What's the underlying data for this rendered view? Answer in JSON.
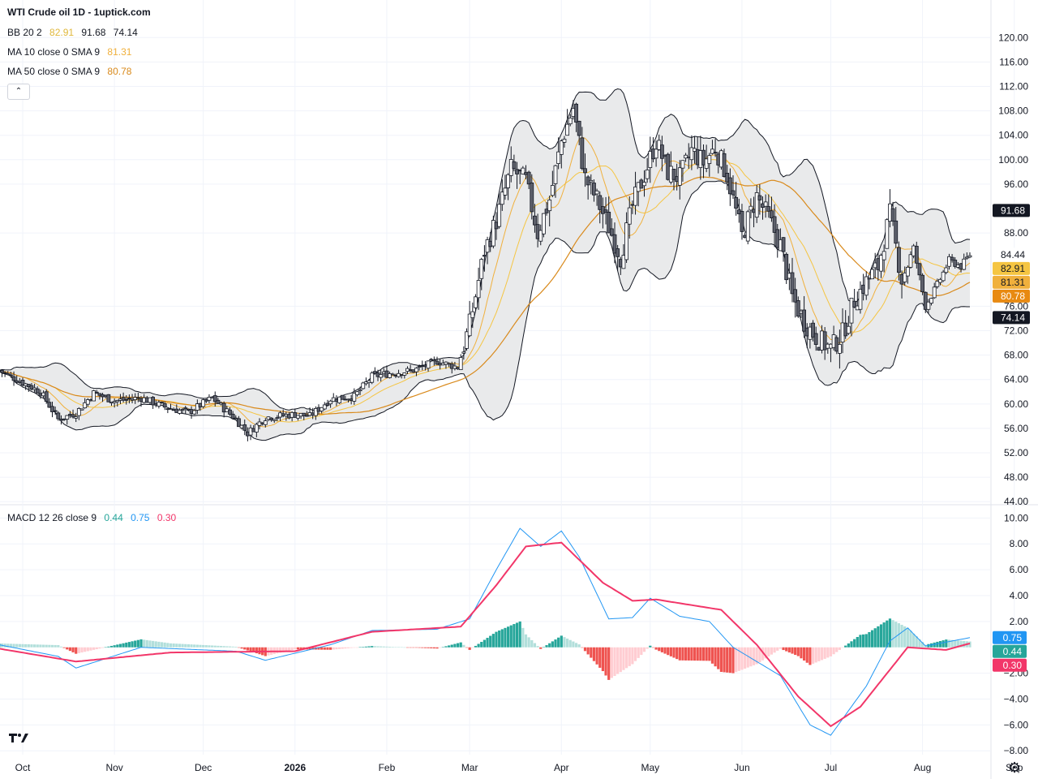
{
  "header": {
    "title": "WTI Crude oil  1D - 1uptick.com"
  },
  "legends": {
    "bb": {
      "label": "BB 20 2",
      "basis": "82.91",
      "upper": "91.68",
      "lower": "74.14",
      "basis_color": "#e0b83c",
      "band_color": "#131722"
    },
    "ma10": {
      "label": "MA 10 close 0 SMA 9",
      "value": "81.31",
      "color": "#f0b03c"
    },
    "ma50": {
      "label": "MA 50 close 0 SMA 9",
      "value": "80.78",
      "color": "#d98a1c"
    },
    "macd": {
      "label": "MACD 12 26 close 9",
      "hist": "0.44",
      "macd": "0.75",
      "signal": "0.30",
      "hist_color": "#26a69a",
      "macd_color": "#2196f3",
      "signal_color": "#f23669"
    }
  },
  "price_labels": [
    {
      "text": "91.68",
      "value": 91.68,
      "bg": "#131722",
      "fg": "#ffffff"
    },
    {
      "text": "84.44",
      "value": 84.44,
      "bg": "#ffffff",
      "fg": "#131722"
    },
    {
      "text": "82.91",
      "value": 82.91,
      "bg": "#f5c542",
      "fg": "#131722"
    },
    {
      "text": "81.31",
      "value": 81.31,
      "bg": "#f0b03c",
      "fg": "#131722"
    },
    {
      "text": "80.78",
      "value": 80.78,
      "bg": "#e88a12",
      "fg": "#ffffff"
    },
    {
      "text": "74.14",
      "value": 74.14,
      "bg": "#131722",
      "fg": "#ffffff"
    }
  ],
  "macd_labels": [
    {
      "text": "0.75",
      "value": 0.75,
      "bg": "#2196f3"
    },
    {
      "text": "0.44",
      "value": 0.44,
      "bg": "#26a69a"
    },
    {
      "text": "0.30",
      "value": 0.3,
      "bg": "#f23669"
    }
  ],
  "chart_data": {
    "type": "candlestick",
    "price_axis": {
      "ticks": [
        120,
        116,
        112,
        108,
        104,
        100,
        96,
        88,
        76,
        72,
        68,
        64,
        60,
        56,
        52,
        48,
        44
      ],
      "ylim": [
        43.5,
        121.5
      ]
    },
    "macd_axis": {
      "ticks": [
        10,
        8,
        6,
        4,
        2,
        -2,
        -4,
        -6,
        -8
      ],
      "ylim": [
        -8.3,
        10.4
      ]
    },
    "x_labels": [
      "Oct",
      "Nov",
      "Dec",
      "2026",
      "Feb",
      "Mar",
      "Apr",
      "May",
      "Jun",
      "Jul",
      "Aug",
      "Sep"
    ],
    "x_label_days": [
      0,
      31,
      61,
      92,
      123,
      151,
      182,
      212,
      243,
      273,
      304,
      335
    ],
    "x_axis_start": "Oct 1",
    "ohlc_anchor_close": [
      {
        "day": -8,
        "close": 65.5
      },
      {
        "day": 0,
        "close": 63.5
      },
      {
        "day": 6,
        "close": 62.0
      },
      {
        "day": 12,
        "close": 57.5
      },
      {
        "day": 18,
        "close": 58.5
      },
      {
        "day": 24,
        "close": 61.8
      },
      {
        "day": 31,
        "close": 60.5
      },
      {
        "day": 40,
        "close": 61.0
      },
      {
        "day": 48,
        "close": 59.5
      },
      {
        "day": 56,
        "close": 58.6
      },
      {
        "day": 64,
        "close": 61.0
      },
      {
        "day": 72,
        "close": 57.5
      },
      {
        "day": 76,
        "close": 55.2
      },
      {
        "day": 82,
        "close": 57.8
      },
      {
        "day": 92,
        "close": 58.3
      },
      {
        "day": 97,
        "close": 58.0
      },
      {
        "day": 104,
        "close": 60.8
      },
      {
        "day": 112,
        "close": 61.2
      },
      {
        "day": 118,
        "close": 64.5
      },
      {
        "day": 124,
        "close": 65.0
      },
      {
        "day": 132,
        "close": 65.5
      },
      {
        "day": 140,
        "close": 67.0
      },
      {
        "day": 147,
        "close": 66.0
      },
      {
        "day": 151,
        "close": 73.0
      },
      {
        "day": 156,
        "close": 85.0
      },
      {
        "day": 160,
        "close": 90.0
      },
      {
        "day": 165,
        "close": 98.5
      },
      {
        "day": 170,
        "close": 96.5
      },
      {
        "day": 174,
        "close": 88.0
      },
      {
        "day": 178,
        "close": 93.5
      },
      {
        "day": 182,
        "close": 103.0
      },
      {
        "day": 186,
        "close": 108.5
      },
      {
        "day": 190,
        "close": 97.0
      },
      {
        "day": 194,
        "close": 93.5
      },
      {
        "day": 198,
        "close": 89.0
      },
      {
        "day": 202,
        "close": 84.0
      },
      {
        "day": 206,
        "close": 92.5
      },
      {
        "day": 210,
        "close": 97.5
      },
      {
        "day": 214,
        "close": 103.0
      },
      {
        "day": 218,
        "close": 98.0
      },
      {
        "day": 222,
        "close": 97.0
      },
      {
        "day": 226,
        "close": 101.5
      },
      {
        "day": 230,
        "close": 99.5
      },
      {
        "day": 234,
        "close": 102.0
      },
      {
        "day": 238,
        "close": 97.5
      },
      {
        "day": 243,
        "close": 87.5
      },
      {
        "day": 248,
        "close": 94.0
      },
      {
        "day": 252,
        "close": 90.5
      },
      {
        "day": 256,
        "close": 86.0
      },
      {
        "day": 260,
        "close": 77.5
      },
      {
        "day": 264,
        "close": 73.5
      },
      {
        "day": 268,
        "close": 71.0
      },
      {
        "day": 273,
        "close": 69.0
      },
      {
        "day": 277,
        "close": 71.5
      },
      {
        "day": 281,
        "close": 77.0
      },
      {
        "day": 285,
        "close": 80.0
      },
      {
        "day": 289,
        "close": 82.5
      },
      {
        "day": 293,
        "close": 91.0
      },
      {
        "day": 297,
        "close": 80.5
      },
      {
        "day": 301,
        "close": 85.5
      },
      {
        "day": 305,
        "close": 76.0
      },
      {
        "day": 309,
        "close": 79.5
      },
      {
        "day": 313,
        "close": 83.5
      },
      {
        "day": 317,
        "close": 82.5
      },
      {
        "day": 320,
        "close": 84.44
      }
    ],
    "macd_line_anchor": [
      {
        "day": -8,
        "value": 0.2
      },
      {
        "day": 12,
        "value": -0.7
      },
      {
        "day": 18,
        "value": -1.6
      },
      {
        "day": 40,
        "value": 0.0
      },
      {
        "day": 72,
        "value": -0.3
      },
      {
        "day": 82,
        "value": -1.0
      },
      {
        "day": 104,
        "value": 0.2
      },
      {
        "day": 118,
        "value": 1.3
      },
      {
        "day": 140,
        "value": 1.4
      },
      {
        "day": 151,
        "value": 2.2
      },
      {
        "day": 160,
        "value": 6.0
      },
      {
        "day": 168,
        "value": 9.2
      },
      {
        "day": 175,
        "value": 7.8
      },
      {
        "day": 182,
        "value": 9.0
      },
      {
        "day": 188,
        "value": 7.0
      },
      {
        "day": 198,
        "value": 2.2
      },
      {
        "day": 206,
        "value": 2.3
      },
      {
        "day": 212,
        "value": 3.8
      },
      {
        "day": 222,
        "value": 2.4
      },
      {
        "day": 232,
        "value": 2.0
      },
      {
        "day": 240,
        "value": 0.0
      },
      {
        "day": 256,
        "value": -2.2
      },
      {
        "day": 266,
        "value": -6.0
      },
      {
        "day": 273,
        "value": -6.8
      },
      {
        "day": 285,
        "value": -3.0
      },
      {
        "day": 293,
        "value": 0.5
      },
      {
        "day": 299,
        "value": 1.5
      },
      {
        "day": 305,
        "value": 0.1
      },
      {
        "day": 320,
        "value": 0.75
      }
    ],
    "signal_line_anchor": [
      {
        "day": -8,
        "value": -0.1
      },
      {
        "day": 18,
        "value": -1.1
      },
      {
        "day": 50,
        "value": -0.4
      },
      {
        "day": 92,
        "value": -0.3
      },
      {
        "day": 118,
        "value": 1.2
      },
      {
        "day": 148,
        "value": 1.6
      },
      {
        "day": 160,
        "value": 4.8
      },
      {
        "day": 170,
        "value": 7.8
      },
      {
        "day": 182,
        "value": 8.1
      },
      {
        "day": 196,
        "value": 5.0
      },
      {
        "day": 206,
        "value": 3.6
      },
      {
        "day": 214,
        "value": 3.7
      },
      {
        "day": 236,
        "value": 2.9
      },
      {
        "day": 248,
        "value": 0.2
      },
      {
        "day": 262,
        "value": -3.8
      },
      {
        "day": 273,
        "value": -6.1
      },
      {
        "day": 283,
        "value": -4.6
      },
      {
        "day": 299,
        "value": 0.0
      },
      {
        "day": 312,
        "value": -0.2
      },
      {
        "day": 320,
        "value": 0.3
      }
    ],
    "colors": {
      "up_body": "#ffffff",
      "down_body": "#5d606b",
      "wick": "#131722",
      "bb_fill": "#e9eaeb",
      "bb_line": "#131722",
      "bb_basis": "#f5c542",
      "ma10": "#f0b03c",
      "ma50": "#d98a1c",
      "hist_up_strong": "#26a69a",
      "hist_up_weak": "#b2dfdb",
      "hist_down_strong": "#ef5350",
      "hist_down_weak": "#ffcdd2"
    }
  }
}
